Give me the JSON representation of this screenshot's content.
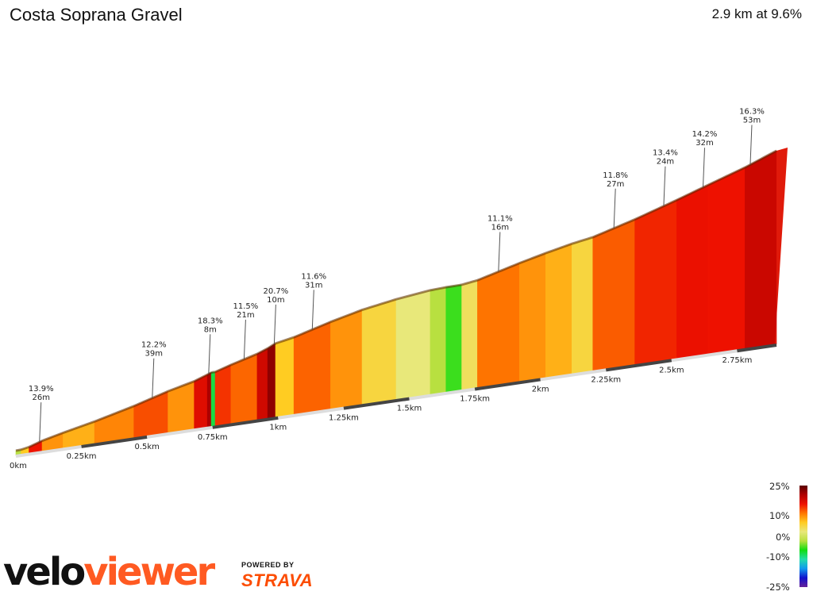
{
  "title": "Costa Soprana Gravel",
  "summary": "2.9 km at 9.6%",
  "chart_data": {
    "type": "area",
    "description_units": {
      "x": "km",
      "gradient": "%"
    },
    "distance_km": 2.9,
    "average_gradient_pct": 9.6,
    "x_tick_labels": [
      "0km",
      "0.25km",
      "0.5km",
      "0.75km",
      "1km",
      "1.25km",
      "1.5km",
      "1.75km",
      "2km",
      "2.25km",
      "2.5km",
      "2.75km"
    ],
    "x_ticks_km": [
      0,
      0.25,
      0.5,
      0.75,
      1,
      1.25,
      1.5,
      1.75,
      2,
      2.25,
      2.5,
      2.75
    ],
    "segments": [
      {
        "x0": 0.0,
        "x1": 0.02,
        "grade": 2
      },
      {
        "x0": 0.02,
        "x1": 0.05,
        "grade": 8
      },
      {
        "x0": 0.05,
        "x1": 0.1,
        "grade": 13.9
      },
      {
        "x0": 0.1,
        "x1": 0.18,
        "grade": 10
      },
      {
        "x0": 0.18,
        "x1": 0.3,
        "grade": 9
      },
      {
        "x0": 0.3,
        "x1": 0.45,
        "grade": 10.5
      },
      {
        "x0": 0.45,
        "x1": 0.58,
        "grade": 12.2
      },
      {
        "x0": 0.58,
        "x1": 0.68,
        "grade": 10
      },
      {
        "x0": 0.68,
        "x1": 0.73,
        "grade": 15
      },
      {
        "x0": 0.73,
        "x1": 0.745,
        "grade": 18.3
      },
      {
        "x0": 0.745,
        "x1": 0.76,
        "grade": -1
      },
      {
        "x0": 0.76,
        "x1": 0.82,
        "grade": 13
      },
      {
        "x0": 0.82,
        "x1": 0.92,
        "grade": 11.5
      },
      {
        "x0": 0.92,
        "x1": 0.96,
        "grade": 16
      },
      {
        "x0": 0.96,
        "x1": 0.99,
        "grade": 20.7
      },
      {
        "x0": 0.99,
        "x1": 1.06,
        "grade": 8
      },
      {
        "x0": 1.06,
        "x1": 1.2,
        "grade": 11.6
      },
      {
        "x0": 1.2,
        "x1": 1.32,
        "grade": 10
      },
      {
        "x0": 1.32,
        "x1": 1.45,
        "grade": 7
      },
      {
        "x0": 1.45,
        "x1": 1.58,
        "grade": 5
      },
      {
        "x0": 1.58,
        "x1": 1.64,
        "grade": 2
      },
      {
        "x0": 1.64,
        "x1": 1.7,
        "grade": 0.5
      },
      {
        "x0": 1.7,
        "x1": 1.76,
        "grade": 6
      },
      {
        "x0": 1.76,
        "x1": 1.92,
        "grade": 11.1
      },
      {
        "x0": 1.92,
        "x1": 2.02,
        "grade": 10
      },
      {
        "x0": 2.02,
        "x1": 2.12,
        "grade": 9
      },
      {
        "x0": 2.12,
        "x1": 2.2,
        "grade": 7
      },
      {
        "x0": 2.2,
        "x1": 2.36,
        "grade": 11.8
      },
      {
        "x0": 2.36,
        "x1": 2.52,
        "grade": 13.4
      },
      {
        "x0": 2.52,
        "x1": 2.64,
        "grade": 14.2
      },
      {
        "x0": 2.64,
        "x1": 2.78,
        "grade": 14
      },
      {
        "x0": 2.78,
        "x1": 2.9,
        "grade": 16.3
      }
    ],
    "annotations": [
      {
        "grade": "13.9%",
        "length": "26m",
        "x_km": 0.09
      },
      {
        "grade": "12.2%",
        "length": "39m",
        "x_km": 0.52
      },
      {
        "grade": "18.3%",
        "length": "8m",
        "x_km": 0.735
      },
      {
        "grade": "11.5%",
        "length": "21m",
        "x_km": 0.87
      },
      {
        "grade": "20.7%",
        "length": "10m",
        "x_km": 0.985
      },
      {
        "grade": "11.6%",
        "length": "31m",
        "x_km": 1.13
      },
      {
        "grade": "11.1%",
        "length": "16m",
        "x_km": 1.84
      },
      {
        "grade": "11.8%",
        "length": "27m",
        "x_km": 2.28
      },
      {
        "grade": "13.4%",
        "length": "24m",
        "x_km": 2.47
      },
      {
        "grade": "14.2%",
        "length": "32m",
        "x_km": 2.62
      },
      {
        "grade": "16.3%",
        "length": "53m",
        "x_km": 2.8
      }
    ],
    "colorscale": {
      "labels": [
        "25%",
        "10%",
        "0%",
        "-10%",
        "-25%"
      ],
      "stops": [
        {
          "grade": 25,
          "color": "#5a0000"
        },
        {
          "grade": 18,
          "color": "#b00000"
        },
        {
          "grade": 14,
          "color": "#ee1100"
        },
        {
          "grade": 11,
          "color": "#ff7700"
        },
        {
          "grade": 8,
          "color": "#ffcc22"
        },
        {
          "grade": 5,
          "color": "#e8e87a"
        },
        {
          "grade": 2,
          "color": "#b8e040"
        },
        {
          "grade": 0,
          "color": "#11dd11"
        },
        {
          "grade": -3,
          "color": "#22ddaa"
        },
        {
          "grade": -10,
          "color": "#1199ee"
        },
        {
          "grade": -18,
          "color": "#1111cc"
        },
        {
          "grade": -25,
          "color": "#662299"
        }
      ]
    }
  },
  "brand": {
    "velo": "velo",
    "viewer": "viewer",
    "powered_by": "POWERED BY",
    "strava": "STRAVA"
  }
}
